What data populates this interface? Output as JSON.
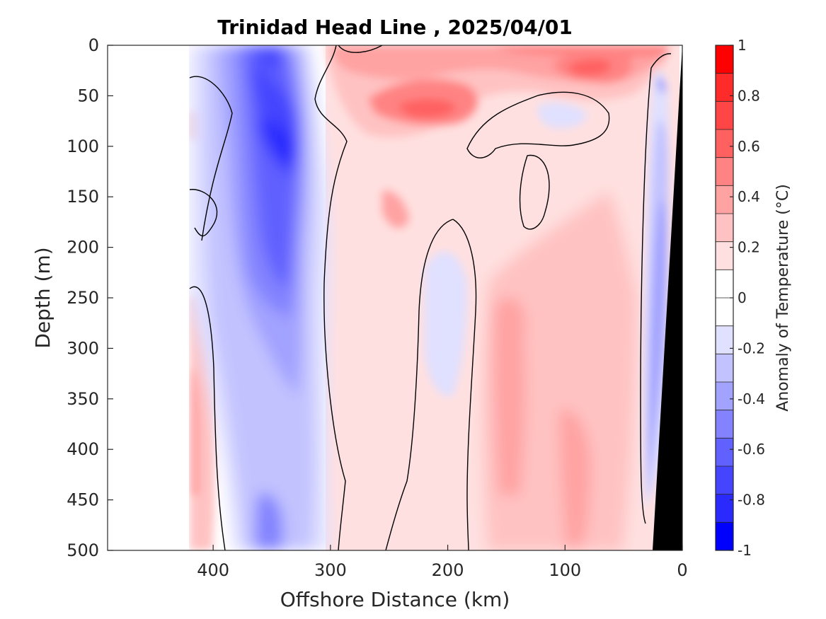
{
  "chart_data": {
    "type": "heatmap",
    "title": "Trinidad Head Line , 2025/04/01",
    "xlabel": "Offshore Distance (km)",
    "ylabel": "Depth (m)",
    "xlim": [
      490,
      0
    ],
    "x_reversed": true,
    "ylim": [
      0,
      500
    ],
    "y_reversed": true,
    "xticks": [
      400,
      300,
      200,
      100,
      0
    ],
    "yticks": [
      0,
      50,
      100,
      150,
      200,
      250,
      300,
      350,
      400,
      450,
      500
    ],
    "grid": false,
    "colorbar": {
      "label": "Anomaly of Temperature (°C)",
      "range": [
        -1,
        1
      ],
      "ticks": [
        1,
        0.8,
        0.6,
        0.4,
        0.2,
        0,
        -0.2,
        -0.4,
        -0.6,
        -0.8,
        -1
      ],
      "colors_high_to_low": [
        "#ff0000",
        "#ff2a2a",
        "#ff4545",
        "#ff6161",
        "#ff8383",
        "#ffa2a2",
        "#ffc2c2",
        "#ffe0e0",
        "#ffffff",
        "#ffffff",
        "#e0e0ff",
        "#c2c2ff",
        "#a2a2ff",
        "#8383ff",
        "#6161ff",
        "#4545ff",
        "#2a2aff",
        "#0000ff"
      ]
    },
    "zero_contour": true,
    "land_mask_color": "#000000",
    "data_coverage_x": [
      420,
      0
    ],
    "features": [
      {
        "name": "cold core",
        "x_range": [
          390,
          300
        ],
        "depth_range": [
          0,
          500
        ],
        "peak_anomaly": -0.9
      },
      {
        "name": "warm subsurface lens",
        "x_range": [
          270,
          180
        ],
        "depth_range": [
          40,
          90
        ],
        "peak_anomaly": 0.7
      },
      {
        "name": "warm surface patch",
        "x_range": [
          120,
          50
        ],
        "depth_range": [
          0,
          50
        ],
        "peak_anomaly": 0.6
      },
      {
        "name": "warm deep band",
        "x_range": [
          170,
          40
        ],
        "depth_range": [
          200,
          500
        ],
        "peak_anomaly": 0.4
      },
      {
        "name": "cool narrow band",
        "x_range": [
          240,
          190
        ],
        "depth_range": [
          190,
          360
        ],
        "peak_anomaly": -0.2
      },
      {
        "name": "coastal cold strip",
        "x_range": [
          35,
          15
        ],
        "depth_range": [
          20,
          460
        ],
        "peak_anomaly": -0.6
      }
    ]
  }
}
